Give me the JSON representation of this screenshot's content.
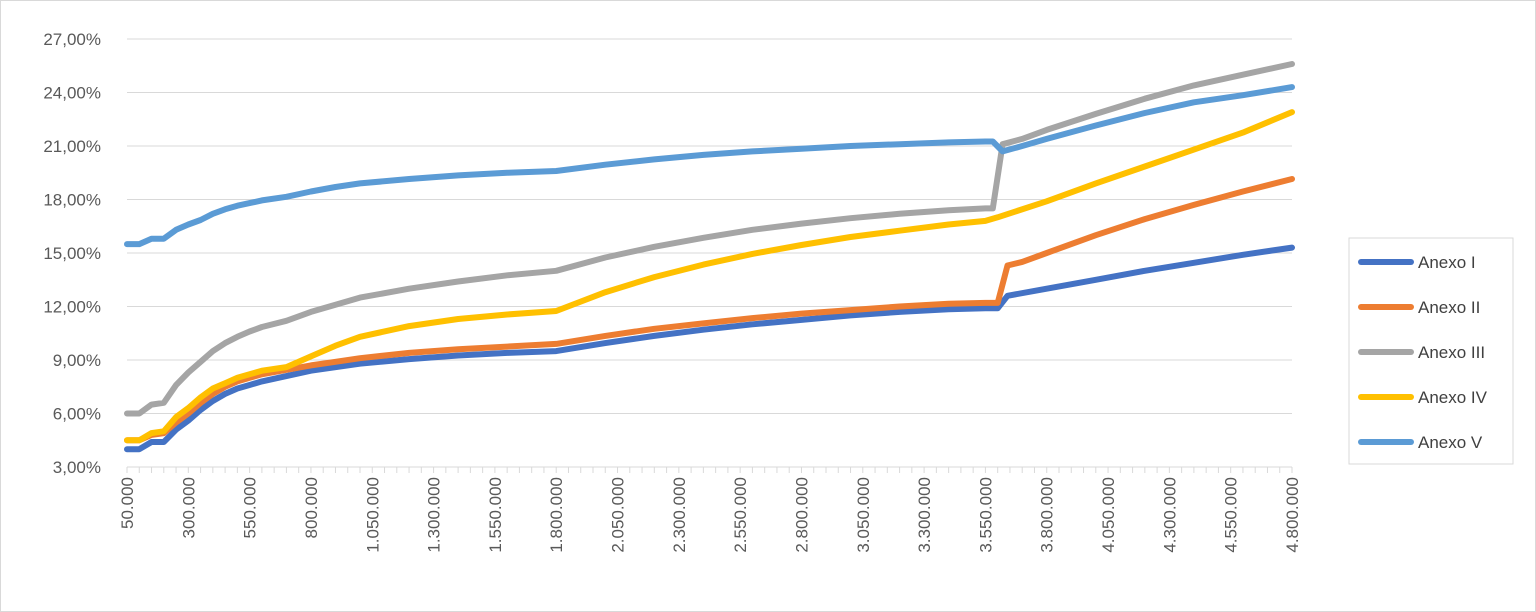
{
  "chart_data": {
    "type": "line",
    "title": "",
    "xlabel": "",
    "ylabel": "",
    "x_range": [
      50000,
      4800000
    ],
    "ylim": [
      3,
      27
    ],
    "y_ticks": [
      3,
      6,
      9,
      12,
      15,
      18,
      21,
      24,
      27
    ],
    "y_tick_labels": [
      "3,00%",
      "6,00%",
      "9,00%",
      "12,00%",
      "15,00%",
      "18,00%",
      "21,00%",
      "24,00%",
      "27,00%"
    ],
    "x_ticks": [
      50000,
      300000,
      550000,
      800000,
      1050000,
      1300000,
      1550000,
      1800000,
      2050000,
      2300000,
      2550000,
      2800000,
      3050000,
      3300000,
      3550000,
      3800000,
      4050000,
      4300000,
      4550000,
      4800000
    ],
    "x_tick_labels": [
      "50.000",
      "300.000",
      "550.000",
      "800.000",
      "1.050.000",
      "1.300.000",
      "1.550.000",
      "1.800.000",
      "2.050.000",
      "2.300.000",
      "2.550.000",
      "2.800.000",
      "3.050.000",
      "3.300.000",
      "3.550.000",
      "3.800.000",
      "4.050.000",
      "4.300.000",
      "4.550.000",
      "4.800.000"
    ],
    "grid": true,
    "legend_position": "right",
    "series": [
      {
        "name": "Anexo I",
        "color": "#4472C4",
        "points": [
          [
            50000,
            4.0
          ],
          [
            100000,
            4.0
          ],
          [
            150000,
            4.4
          ],
          [
            200000,
            4.4
          ],
          [
            250000,
            5.1
          ],
          [
            300000,
            5.6
          ],
          [
            350000,
            6.2
          ],
          [
            400000,
            6.7
          ],
          [
            450000,
            7.1
          ],
          [
            500000,
            7.4
          ],
          [
            550000,
            7.6
          ],
          [
            600000,
            7.8
          ],
          [
            700000,
            8.1
          ],
          [
            800000,
            8.4
          ],
          [
            900000,
            8.6
          ],
          [
            1000000,
            8.8
          ],
          [
            1200000,
            9.05
          ],
          [
            1400000,
            9.25
          ],
          [
            1600000,
            9.4
          ],
          [
            1800000,
            9.5
          ],
          [
            2000000,
            9.95
          ],
          [
            2200000,
            10.35
          ],
          [
            2400000,
            10.7
          ],
          [
            2600000,
            11.0
          ],
          [
            2800000,
            11.25
          ],
          [
            3000000,
            11.5
          ],
          [
            3200000,
            11.7
          ],
          [
            3400000,
            11.85
          ],
          [
            3550000,
            11.9
          ],
          [
            3600000,
            11.9
          ],
          [
            3640000,
            12.6
          ],
          [
            3800000,
            13.0
          ],
          [
            4000000,
            13.5
          ],
          [
            4200000,
            14.0
          ],
          [
            4400000,
            14.45
          ],
          [
            4600000,
            14.9
          ],
          [
            4800000,
            15.3
          ]
        ]
      },
      {
        "name": "Anexo II",
        "color": "#ED7D31",
        "points": [
          [
            50000,
            4.5
          ],
          [
            100000,
            4.5
          ],
          [
            150000,
            4.8
          ],
          [
            200000,
            4.9
          ],
          [
            250000,
            5.5
          ],
          [
            300000,
            6.0
          ],
          [
            350000,
            6.6
          ],
          [
            400000,
            7.1
          ],
          [
            450000,
            7.5
          ],
          [
            500000,
            7.8
          ],
          [
            550000,
            8.0
          ],
          [
            600000,
            8.2
          ],
          [
            700000,
            8.45
          ],
          [
            800000,
            8.7
          ],
          [
            900000,
            8.9
          ],
          [
            1000000,
            9.1
          ],
          [
            1200000,
            9.4
          ],
          [
            1400000,
            9.6
          ],
          [
            1600000,
            9.75
          ],
          [
            1800000,
            9.9
          ],
          [
            2000000,
            10.35
          ],
          [
            2200000,
            10.75
          ],
          [
            2400000,
            11.05
          ],
          [
            2600000,
            11.35
          ],
          [
            2800000,
            11.6
          ],
          [
            3000000,
            11.8
          ],
          [
            3200000,
            12.0
          ],
          [
            3400000,
            12.15
          ],
          [
            3550000,
            12.2
          ],
          [
            3600000,
            12.2
          ],
          [
            3640000,
            14.3
          ],
          [
            3700000,
            14.5
          ],
          [
            3800000,
            15.0
          ],
          [
            4000000,
            16.0
          ],
          [
            4200000,
            16.9
          ],
          [
            4400000,
            17.7
          ],
          [
            4600000,
            18.45
          ],
          [
            4800000,
            19.15
          ]
        ]
      },
      {
        "name": "Anexo III",
        "color": "#A5A5A5",
        "points": [
          [
            50000,
            6.0
          ],
          [
            100000,
            6.0
          ],
          [
            150000,
            6.5
          ],
          [
            200000,
            6.6
          ],
          [
            250000,
            7.6
          ],
          [
            300000,
            8.3
          ],
          [
            350000,
            8.9
          ],
          [
            400000,
            9.5
          ],
          [
            450000,
            9.95
          ],
          [
            500000,
            10.3
          ],
          [
            550000,
            10.6
          ],
          [
            600000,
            10.85
          ],
          [
            700000,
            11.2
          ],
          [
            800000,
            11.7
          ],
          [
            900000,
            12.1
          ],
          [
            1000000,
            12.5
          ],
          [
            1200000,
            13.0
          ],
          [
            1400000,
            13.4
          ],
          [
            1600000,
            13.75
          ],
          [
            1800000,
            14.0
          ],
          [
            2000000,
            14.75
          ],
          [
            2200000,
            15.35
          ],
          [
            2400000,
            15.85
          ],
          [
            2600000,
            16.3
          ],
          [
            2800000,
            16.65
          ],
          [
            3000000,
            16.95
          ],
          [
            3200000,
            17.2
          ],
          [
            3400000,
            17.4
          ],
          [
            3550000,
            17.5
          ],
          [
            3580000,
            17.5
          ],
          [
            3620000,
            21.1
          ],
          [
            3700000,
            21.4
          ],
          [
            3800000,
            21.9
          ],
          [
            4000000,
            22.8
          ],
          [
            4200000,
            23.65
          ],
          [
            4400000,
            24.4
          ],
          [
            4600000,
            25.0
          ],
          [
            4800000,
            25.6
          ]
        ]
      },
      {
        "name": "Anexo IV",
        "color": "#FFC000",
        "points": [
          [
            50000,
            4.5
          ],
          [
            100000,
            4.5
          ],
          [
            150000,
            4.9
          ],
          [
            200000,
            5.0
          ],
          [
            250000,
            5.8
          ],
          [
            300000,
            6.3
          ],
          [
            350000,
            6.9
          ],
          [
            400000,
            7.4
          ],
          [
            450000,
            7.7
          ],
          [
            500000,
            8.0
          ],
          [
            550000,
            8.2
          ],
          [
            600000,
            8.4
          ],
          [
            700000,
            8.6
          ],
          [
            800000,
            9.2
          ],
          [
            900000,
            9.8
          ],
          [
            1000000,
            10.3
          ],
          [
            1200000,
            10.9
          ],
          [
            1400000,
            11.3
          ],
          [
            1600000,
            11.55
          ],
          [
            1800000,
            11.75
          ],
          [
            2000000,
            12.8
          ],
          [
            2200000,
            13.65
          ],
          [
            2400000,
            14.35
          ],
          [
            2600000,
            14.95
          ],
          [
            2800000,
            15.45
          ],
          [
            3000000,
            15.9
          ],
          [
            3200000,
            16.25
          ],
          [
            3400000,
            16.6
          ],
          [
            3550000,
            16.8
          ],
          [
            3600000,
            17.0
          ],
          [
            3800000,
            17.9
          ],
          [
            4000000,
            18.9
          ],
          [
            4200000,
            19.85
          ],
          [
            4400000,
            20.8
          ],
          [
            4600000,
            21.75
          ],
          [
            4800000,
            22.9
          ]
        ]
      },
      {
        "name": "Anexo V",
        "color": "#5B9BD5",
        "points": [
          [
            50000,
            15.5
          ],
          [
            100000,
            15.5
          ],
          [
            150000,
            15.8
          ],
          [
            200000,
            15.8
          ],
          [
            250000,
            16.3
          ],
          [
            300000,
            16.6
          ],
          [
            350000,
            16.85
          ],
          [
            400000,
            17.2
          ],
          [
            450000,
            17.45
          ],
          [
            500000,
            17.65
          ],
          [
            550000,
            17.8
          ],
          [
            600000,
            17.95
          ],
          [
            700000,
            18.15
          ],
          [
            800000,
            18.45
          ],
          [
            900000,
            18.7
          ],
          [
            1000000,
            18.9
          ],
          [
            1200000,
            19.15
          ],
          [
            1400000,
            19.35
          ],
          [
            1600000,
            19.5
          ],
          [
            1800000,
            19.6
          ],
          [
            2000000,
            19.95
          ],
          [
            2200000,
            20.25
          ],
          [
            2400000,
            20.5
          ],
          [
            2600000,
            20.7
          ],
          [
            2800000,
            20.85
          ],
          [
            3000000,
            21.0
          ],
          [
            3200000,
            21.1
          ],
          [
            3400000,
            21.2
          ],
          [
            3550000,
            21.25
          ],
          [
            3580000,
            21.25
          ],
          [
            3620000,
            20.7
          ],
          [
            3700000,
            21.0
          ],
          [
            3800000,
            21.4
          ],
          [
            4000000,
            22.15
          ],
          [
            4200000,
            22.85
          ],
          [
            4400000,
            23.45
          ],
          [
            4600000,
            23.85
          ],
          [
            4800000,
            24.3
          ]
        ]
      }
    ]
  }
}
